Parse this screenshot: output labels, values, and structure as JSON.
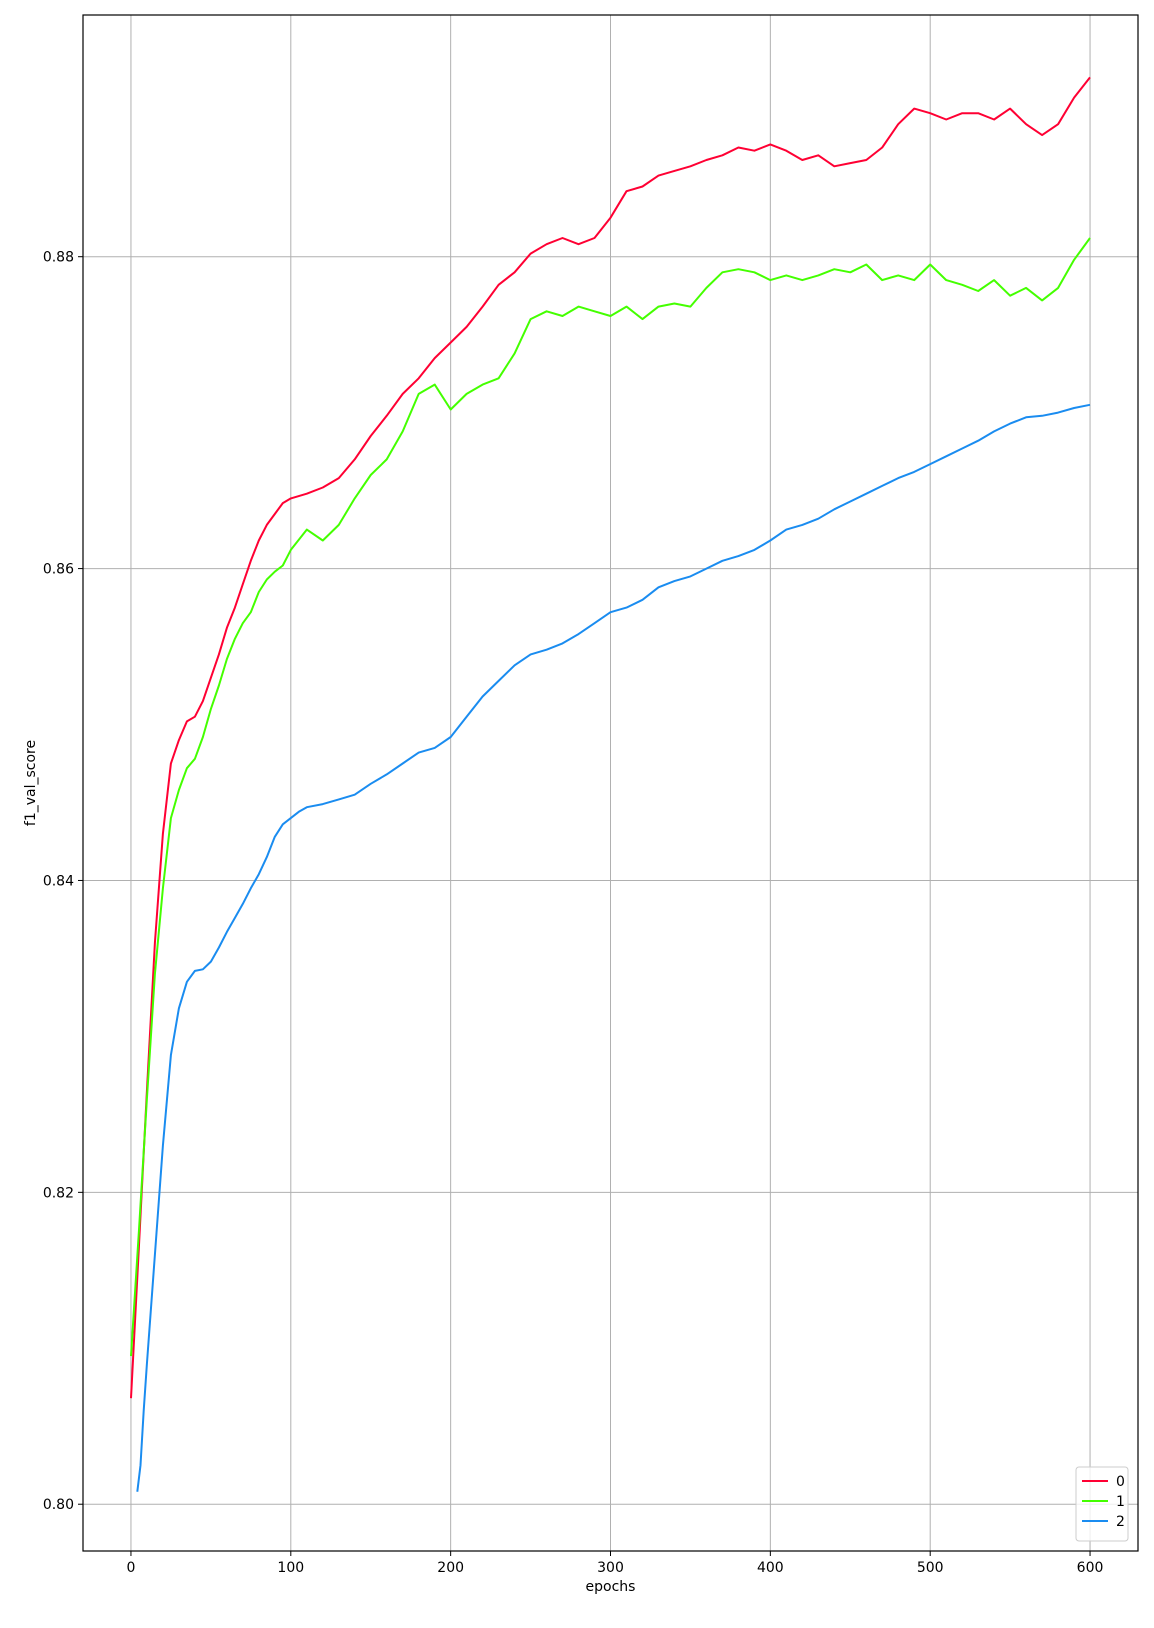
{
  "chart_data": {
    "type": "line",
    "title": "",
    "xlabel": "epochs",
    "ylabel": "f1_val_score",
    "xlim": [
      -30,
      630
    ],
    "ylim": [
      0.797,
      0.8955
    ],
    "xticks": [
      0,
      100,
      200,
      300,
      400,
      500,
      600
    ],
    "xtick_labels": [
      "0",
      "100",
      "200",
      "300",
      "400",
      "500",
      "600"
    ],
    "yticks": [
      0.8,
      0.82,
      0.84,
      0.86,
      0.88
    ],
    "ytick_labels": [
      "0.80",
      "0.82",
      "0.84",
      "0.86",
      "0.88"
    ],
    "grid": true,
    "legend_position": "lower-right",
    "series": [
      {
        "name": "0",
        "color": "#ff0033",
        "x": [
          0,
          5,
          10,
          15,
          20,
          25,
          30,
          35,
          40,
          45,
          50,
          55,
          60,
          65,
          70,
          75,
          80,
          85,
          90,
          95,
          100,
          110,
          120,
          130,
          140,
          150,
          160,
          170,
          180,
          190,
          200,
          210,
          220,
          230,
          240,
          250,
          260,
          270,
          280,
          290,
          300,
          310,
          320,
          330,
          340,
          350,
          360,
          370,
          380,
          390,
          400,
          410,
          420,
          430,
          440,
          450,
          460,
          470,
          480,
          490,
          500,
          510,
          520,
          530,
          540,
          550,
          560,
          570,
          580,
          590,
          600
        ],
        "y": [
          0.8068,
          0.8165,
          0.8265,
          0.836,
          0.843,
          0.8475,
          0.849,
          0.8502,
          0.8505,
          0.8515,
          0.853,
          0.8545,
          0.8562,
          0.8575,
          0.859,
          0.8605,
          0.8618,
          0.8628,
          0.8635,
          0.8642,
          0.8645,
          0.8648,
          0.8652,
          0.8658,
          0.867,
          0.8685,
          0.8698,
          0.8712,
          0.8722,
          0.8735,
          0.8745,
          0.8755,
          0.8768,
          0.8782,
          0.879,
          0.8802,
          0.8808,
          0.8812,
          0.8808,
          0.8812,
          0.8825,
          0.8842,
          0.8845,
          0.8852,
          0.8855,
          0.8858,
          0.8862,
          0.8865,
          0.887,
          0.8868,
          0.8872,
          0.8868,
          0.8862,
          0.8865,
          0.8858,
          0.886,
          0.8862,
          0.887,
          0.8885,
          0.8895,
          0.8892,
          0.8888,
          0.8892,
          0.8892,
          0.8888,
          0.8895,
          0.8885,
          0.8878,
          0.8885,
          0.8902,
          0.8915
        ]
      },
      {
        "name": "1",
        "color": "#44ff00",
        "x": [
          0,
          5,
          10,
          15,
          20,
          25,
          30,
          35,
          40,
          45,
          50,
          55,
          60,
          65,
          70,
          75,
          80,
          85,
          90,
          95,
          100,
          110,
          120,
          130,
          140,
          150,
          160,
          170,
          180,
          190,
          200,
          210,
          220,
          230,
          240,
          250,
          260,
          270,
          280,
          290,
          300,
          310,
          320,
          330,
          340,
          350,
          360,
          370,
          380,
          390,
          400,
          410,
          420,
          430,
          440,
          450,
          460,
          470,
          480,
          490,
          500,
          510,
          520,
          530,
          540,
          550,
          560,
          570,
          580,
          590,
          600
        ],
        "y": [
          0.8095,
          0.8175,
          0.826,
          0.834,
          0.8395,
          0.844,
          0.8458,
          0.8472,
          0.8478,
          0.8492,
          0.851,
          0.8525,
          0.8542,
          0.8555,
          0.8565,
          0.8572,
          0.8585,
          0.8593,
          0.8598,
          0.8602,
          0.8612,
          0.8625,
          0.8618,
          0.8628,
          0.8645,
          0.866,
          0.867,
          0.8688,
          0.8712,
          0.8718,
          0.8702,
          0.8712,
          0.8718,
          0.8722,
          0.8738,
          0.876,
          0.8765,
          0.8762,
          0.8768,
          0.8765,
          0.8762,
          0.8768,
          0.876,
          0.8768,
          0.877,
          0.8768,
          0.878,
          0.879,
          0.8792,
          0.879,
          0.8785,
          0.8788,
          0.8785,
          0.8788,
          0.8792,
          0.879,
          0.8795,
          0.8785,
          0.8788,
          0.8785,
          0.8795,
          0.8785,
          0.8782,
          0.8778,
          0.8785,
          0.8775,
          0.878,
          0.8772,
          0.878,
          0.8798,
          0.8812
        ]
      },
      {
        "name": "2",
        "color": "#1a8cf0",
        "x": [
          4,
          6,
          8,
          10,
          15,
          20,
          25,
          30,
          35,
          40,
          45,
          50,
          55,
          60,
          65,
          70,
          75,
          80,
          85,
          90,
          95,
          100,
          105,
          110,
          120,
          130,
          140,
          150,
          160,
          170,
          180,
          190,
          200,
          210,
          220,
          230,
          240,
          250,
          260,
          270,
          280,
          290,
          300,
          310,
          320,
          330,
          340,
          350,
          360,
          370,
          380,
          390,
          400,
          410,
          420,
          430,
          440,
          450,
          460,
          470,
          480,
          490,
          500,
          510,
          520,
          530,
          540,
          550,
          560,
          570,
          580,
          590,
          600
        ],
        "y": [
          0.8008,
          0.8025,
          0.806,
          0.809,
          0.816,
          0.823,
          0.8288,
          0.8318,
          0.8335,
          0.8342,
          0.8343,
          0.8348,
          0.8357,
          0.8367,
          0.8376,
          0.8385,
          0.8395,
          0.8404,
          0.8415,
          0.8428,
          0.8436,
          0.844,
          0.8444,
          0.8447,
          0.8449,
          0.8452,
          0.8455,
          0.8462,
          0.8468,
          0.8475,
          0.8482,
          0.8485,
          0.8492,
          0.8505,
          0.8518,
          0.8528,
          0.8538,
          0.8545,
          0.8548,
          0.8552,
          0.8558,
          0.8565,
          0.8572,
          0.8575,
          0.858,
          0.8588,
          0.8592,
          0.8595,
          0.86,
          0.8605,
          0.8608,
          0.8612,
          0.8618,
          0.8625,
          0.8628,
          0.8632,
          0.8638,
          0.8643,
          0.8648,
          0.8653,
          0.8658,
          0.8662,
          0.8667,
          0.8672,
          0.8677,
          0.8682,
          0.8688,
          0.8693,
          0.8697,
          0.8698,
          0.87,
          0.8703,
          0.8705
        ]
      }
    ]
  }
}
